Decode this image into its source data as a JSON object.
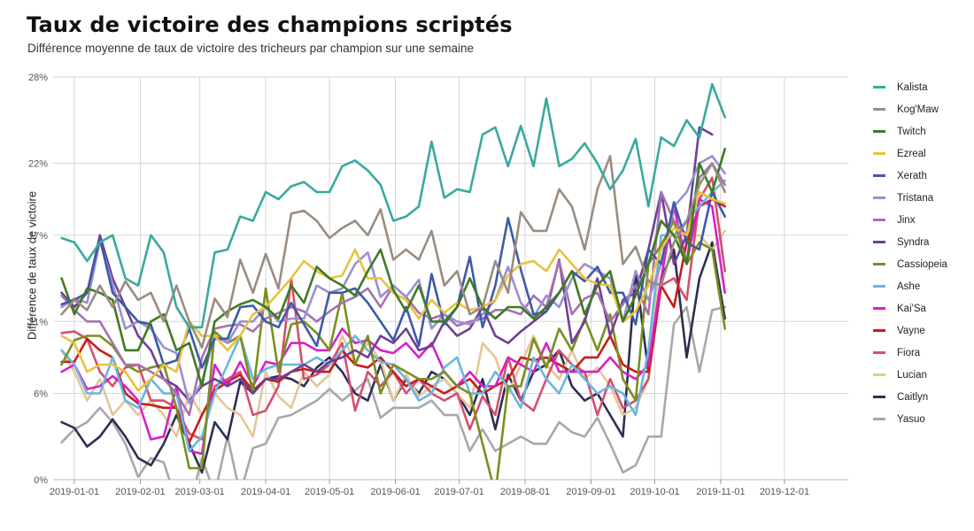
{
  "chart_data": {
    "type": "line",
    "title": "Taux de victoire des champions scriptés",
    "subtitle": "Différence moyenne de taux de victoire des tricheurs par champion sur une semaine",
    "xlabel": "",
    "ylabel": "Différence de taux de victoire",
    "ylim": [
      0,
      28
    ],
    "yticks": [
      0,
      6,
      11,
      17,
      22,
      28
    ],
    "ytick_labels": [
      "0%",
      "6%",
      "11%",
      "17%",
      "22%",
      "28%"
    ],
    "xlim": [
      "2018-12-22",
      "2019-12-31"
    ],
    "xticks": [
      "2019-01-01",
      "2019-02-01",
      "2019-03-01",
      "2019-04-01",
      "2019-05-01",
      "2019-06-01",
      "2019-07-01",
      "2019-08-01",
      "2019-09-01",
      "2019-10-01",
      "2019-11-01",
      "2019-12-01"
    ],
    "grid": true,
    "legend_position": "right",
    "start_date": "2018-12-26",
    "interval_days": 6,
    "series": [
      {
        "name": "Kalista",
        "color": "#3aa99f",
        "values": [
          16.8,
          16.5,
          15.2,
          16.5,
          17,
          14,
          13.5,
          17,
          15.8,
          12,
          10.6,
          10.6,
          15.8,
          16,
          18.3,
          18,
          20,
          19.5,
          20.4,
          20.7,
          20,
          20,
          21.8,
          22.2,
          21.5,
          20.5,
          18,
          18.3,
          19,
          23.5,
          19.6,
          20.2,
          20,
          24,
          24.5,
          21.8,
          24.6,
          21.8,
          26.5,
          21.8,
          22.3,
          23.4,
          22,
          20.2,
          21.5,
          23.7,
          19,
          23.8,
          23.2,
          25,
          23.8,
          27.5,
          25.2
        ]
      },
      {
        "name": "Kog'Maw",
        "color": "#9b8c80",
        "values": [
          11.5,
          12.5,
          11.8,
          13.5,
          12,
          13.8,
          12.5,
          13,
          11,
          13.5,
          11,
          9.2,
          12.6,
          11.3,
          15.3,
          13,
          15.7,
          13.3,
          18.5,
          18.7,
          18,
          16.8,
          17.5,
          18,
          17,
          18.8,
          15.3,
          16,
          15.3,
          17.3,
          13.5,
          14.5,
          11.5,
          12,
          15.2,
          13,
          18.6,
          17.3,
          17.3,
          20.2,
          19,
          16,
          20.2,
          22.5,
          15,
          16.2,
          13.8,
          13.5,
          16.5,
          18,
          20.5,
          22,
          20
        ]
      },
      {
        "name": "Twitch",
        "color": "#3f7a22",
        "values": [
          14,
          11.5,
          13.3,
          13,
          12.5,
          9,
          9,
          11,
          11.5,
          9,
          9.5,
          6.5,
          11,
          11.7,
          12.2,
          12.5,
          12,
          11.2,
          13.5,
          12.3,
          14.8,
          14,
          13.5,
          12.8,
          14.5,
          16,
          13.2,
          11.7,
          13.5,
          11,
          11,
          12,
          14,
          12,
          11.2,
          12,
          12,
          11.2,
          12,
          13,
          14.5,
          11.5,
          13.5,
          14.5,
          11,
          12.8,
          15,
          18,
          17,
          15,
          22,
          20,
          23
        ]
      },
      {
        "name": "Ezreal",
        "color": "#e9c23e",
        "values": [
          10,
          9.5,
          7.5,
          8,
          8,
          7.5,
          6.2,
          7,
          8,
          7.5,
          11,
          10,
          10,
          9,
          10,
          11.5,
          12,
          13,
          14,
          15.2,
          14.5,
          14,
          14.2,
          16,
          14,
          14,
          13,
          12.5,
          11.2,
          12.5,
          11.6,
          12.3,
          11.8,
          12,
          12.5,
          14.2,
          15,
          15.2,
          14.5,
          16,
          15,
          14,
          13.6,
          13.5,
          11,
          11.7,
          13.5,
          16,
          17.5,
          17,
          20,
          19.5,
          19.2
        ]
      },
      {
        "name": "Xerath",
        "color": "#3d5aa6",
        "values": [
          12.2,
          12.5,
          13,
          16.8,
          13,
          12,
          11,
          10.8,
          8,
          8.3,
          10.5,
          7.8,
          9.8,
          9.8,
          12,
          12.1,
          11,
          10.6,
          12.3,
          10.8,
          9.3,
          13,
          13,
          13.3,
          12.3,
          11,
          9.7,
          12,
          9.3,
          14.3,
          10.8,
          12,
          15.5,
          10.6,
          13.5,
          18.2,
          14.6,
          11.5,
          11.7,
          13,
          14.5,
          13.8,
          14.8,
          13,
          13,
          10.8,
          16,
          15,
          19.3,
          16.5,
          16,
          20,
          18.3
        ]
      },
      {
        "name": "Tristana",
        "color": "#9a90cf",
        "values": [
          12,
          12.6,
          12.3,
          16.6,
          13.6,
          10.5,
          11,
          10.5,
          9.2,
          8.8,
          5.3,
          6.8,
          10,
          9.5,
          11,
          11,
          12,
          11,
          11.2,
          11.2,
          13.5,
          13,
          13.3,
          15,
          15.8,
          12.7,
          13.5,
          12.7,
          13.9,
          10.5,
          11.5,
          11,
          10.8,
          11.5,
          12.5,
          14.8,
          12.3,
          11.3,
          12.8,
          12,
          14,
          15,
          14.5,
          14,
          11,
          14.5,
          12.5,
          15,
          19,
          20,
          22,
          22.5,
          21.3
        ]
      },
      {
        "name": "Jinx",
        "color": "#a572ae",
        "values": [
          12.8,
          11.8,
          11,
          11,
          9.5,
          8,
          8,
          7.5,
          7,
          6,
          4.5,
          8.5,
          10.5,
          10.7,
          10.8,
          10.3,
          11.2,
          11.6,
          12,
          11.7,
          11,
          11.7,
          12.3,
          12.7,
          13.3,
          12,
          13.5,
          12.7,
          11.6,
          11.2,
          11.5,
          10.7,
          11,
          11.2,
          11.8,
          11.8,
          11.5,
          12.8,
          12,
          15.2,
          11.5,
          12.6,
          13,
          11,
          12.2,
          13.5,
          11.5,
          20,
          18,
          17,
          21,
          22,
          20.5
        ]
      },
      {
        "name": "Syndra",
        "color": "#6e3f96",
        "values": [
          13,
          12,
          13,
          17,
          14,
          12,
          10,
          9,
          7,
          6.5,
          5.5,
          6.5,
          7,
          6.5,
          7,
          6,
          7,
          7,
          7.5,
          8,
          7.5,
          8.2,
          8.5,
          9,
          8.5,
          10,
          9.5,
          10.5,
          9,
          9.3,
          11,
          10,
          10.5,
          12,
          10,
          9.5,
          10.3,
          11,
          11.7,
          15.3,
          9.5,
          11,
          14,
          10,
          12.5,
          13,
          16,
          20,
          15,
          17,
          24.5,
          24
        ]
      },
      {
        "name": "Cassiopeia",
        "color": "#7a8f1e",
        "values": [
          8,
          9.7,
          10,
          10,
          9.3,
          8,
          7.5,
          7.8,
          8,
          5,
          0.8,
          0.8,
          10.3,
          9.5,
          10,
          6,
          13.3,
          7.5,
          10.8,
          11,
          10.2,
          9,
          13,
          8,
          10,
          6,
          8,
          7.5,
          7,
          7,
          7.5,
          6.5,
          6,
          2.5,
          -1,
          6.5,
          6.5,
          9.8,
          7.8,
          10.5,
          9,
          11.2,
          9,
          11.5,
          7,
          5.5,
          15,
          16.3,
          18,
          15,
          16.5,
          16,
          10.5
        ]
      },
      {
        "name": "Ashe",
        "color": "#6ab6df",
        "values": [
          9,
          8,
          6,
          6,
          8.5,
          5.5,
          5,
          7,
          6,
          6,
          2,
          3,
          6,
          8,
          10,
          7,
          7.7,
          8,
          8,
          8,
          8.5,
          8,
          9,
          10,
          9,
          8.2,
          8,
          7,
          5.5,
          6,
          7.8,
          8.5,
          6,
          6,
          7.5,
          6.5,
          5,
          8.5,
          7,
          6,
          8,
          7,
          6,
          6.5,
          6,
          4.5,
          9,
          17,
          17,
          18,
          19,
          20,
          20.8
        ]
      },
      {
        "name": "Kai'Sa",
        "color": "#d522c9",
        "values": [
          7.5,
          8,
          6.3,
          6.5,
          7.2,
          6.5,
          5.5,
          2.8,
          3,
          6.5,
          2,
          1.8,
          8,
          6.5,
          8.2,
          6.5,
          8.2,
          8,
          9.5,
          9.5,
          9,
          9,
          10.5,
          9.5,
          9.7,
          9,
          8.8,
          9.5,
          8.5,
          9.5,
          7.5,
          6.5,
          7.5,
          6.5,
          6.5,
          8.5,
          8,
          7.5,
          9.5,
          7.5,
          7.5,
          7.5,
          7.5,
          8.5,
          7.5,
          7,
          8,
          14,
          19,
          15,
          19.5,
          19,
          13
        ]
      },
      {
        "name": "Vayne",
        "color": "#c71c1c",
        "values": [
          8.2,
          8.2,
          9.8,
          9,
          8.5,
          6,
          5.3,
          5.2,
          5,
          5,
          2.6,
          4.5,
          6.2,
          6.8,
          7.3,
          6.2,
          7,
          6.8,
          7.5,
          7.7,
          7.5,
          7.5,
          9,
          8,
          7.8,
          8.5,
          7.5,
          6.5,
          7,
          6.5,
          6,
          6.5,
          7,
          6,
          6.5,
          7,
          8.5,
          8.3,
          8.5,
          8,
          7.5,
          8.5,
          8.5,
          10,
          8,
          7.5,
          7.5,
          13.5,
          12,
          16.5,
          19,
          19.5,
          19
        ]
      },
      {
        "name": "Fiora",
        "color": "#d4506e",
        "values": [
          10.2,
          10.3,
          9.8,
          7.5,
          6.5,
          7.8,
          8,
          5.5,
          5.5,
          5,
          3.2,
          2.8,
          6.5,
          7,
          7.5,
          4.5,
          4.8,
          6.5,
          14,
          7,
          7.3,
          8,
          9.5,
          4.8,
          7.5,
          6.5,
          7.5,
          6,
          7,
          6,
          5.5,
          6,
          3.5,
          5.8,
          4.5,
          8.5,
          5.5,
          4.8,
          7,
          9,
          8,
          7.5,
          4.5,
          7,
          5,
          5.5,
          7,
          13.5,
          14,
          12.5,
          19.5,
          21,
          14.5
        ]
      },
      {
        "name": "Lucian",
        "color": "#e2c797",
        "values": [
          9,
          7.5,
          5.5,
          7,
          4.5,
          5.5,
          4.5,
          5.5,
          4.5,
          3,
          6,
          4.5,
          6,
          5,
          4.5,
          3,
          7.5,
          5.8,
          5,
          7.5,
          6.5,
          7.3,
          10,
          8.2,
          9.5,
          8.3,
          5.5,
          7.3,
          5.8,
          6.5,
          7,
          6,
          5,
          9.5,
          8.5,
          6,
          8,
          10,
          8,
          7,
          9,
          7,
          7.8,
          6.5,
          4.5,
          5,
          7,
          16.5,
          17,
          17,
          17,
          16,
          17.3
        ]
      },
      {
        "name": "Caitlyn",
        "color": "#2e2f52",
        "values": [
          4,
          3.6,
          2.3,
          3,
          4.2,
          3,
          1.5,
          1,
          2.5,
          4.5,
          2.5,
          0.5,
          4,
          2.8,
          6.8,
          6,
          7,
          7.2,
          7,
          6.5,
          7.8,
          8.5,
          7.5,
          6,
          5.5,
          8,
          5.5,
          7,
          6,
          7.5,
          7,
          6,
          4.5,
          7,
          3.5,
          7.3,
          5.5,
          7.5,
          8,
          9,
          6.5,
          5.5,
          6,
          4.5,
          3,
          14.5,
          7.5,
          14,
          16,
          8.5,
          14,
          16.5,
          11.2
        ]
      },
      {
        "name": "Yasuo",
        "color": "#a8a8a8",
        "values": [
          2.6,
          3.5,
          4,
          5,
          4,
          2.5,
          0.2,
          1.5,
          1.2,
          -1.5,
          -2,
          1.5,
          -1,
          3,
          -1,
          2.2,
          2.5,
          4.3,
          4.5,
          5,
          5.5,
          6.3,
          5.5,
          6.2,
          7,
          4.3,
          5,
          5,
          5,
          5.5,
          4.5,
          4.5,
          2,
          3.5,
          2,
          2.5,
          3,
          2.5,
          2.5,
          4,
          3.3,
          3,
          4.3,
          2.5,
          0.5,
          1,
          3,
          3,
          10.8,
          12,
          7.5,
          11.8,
          12
        ]
      }
    ]
  }
}
